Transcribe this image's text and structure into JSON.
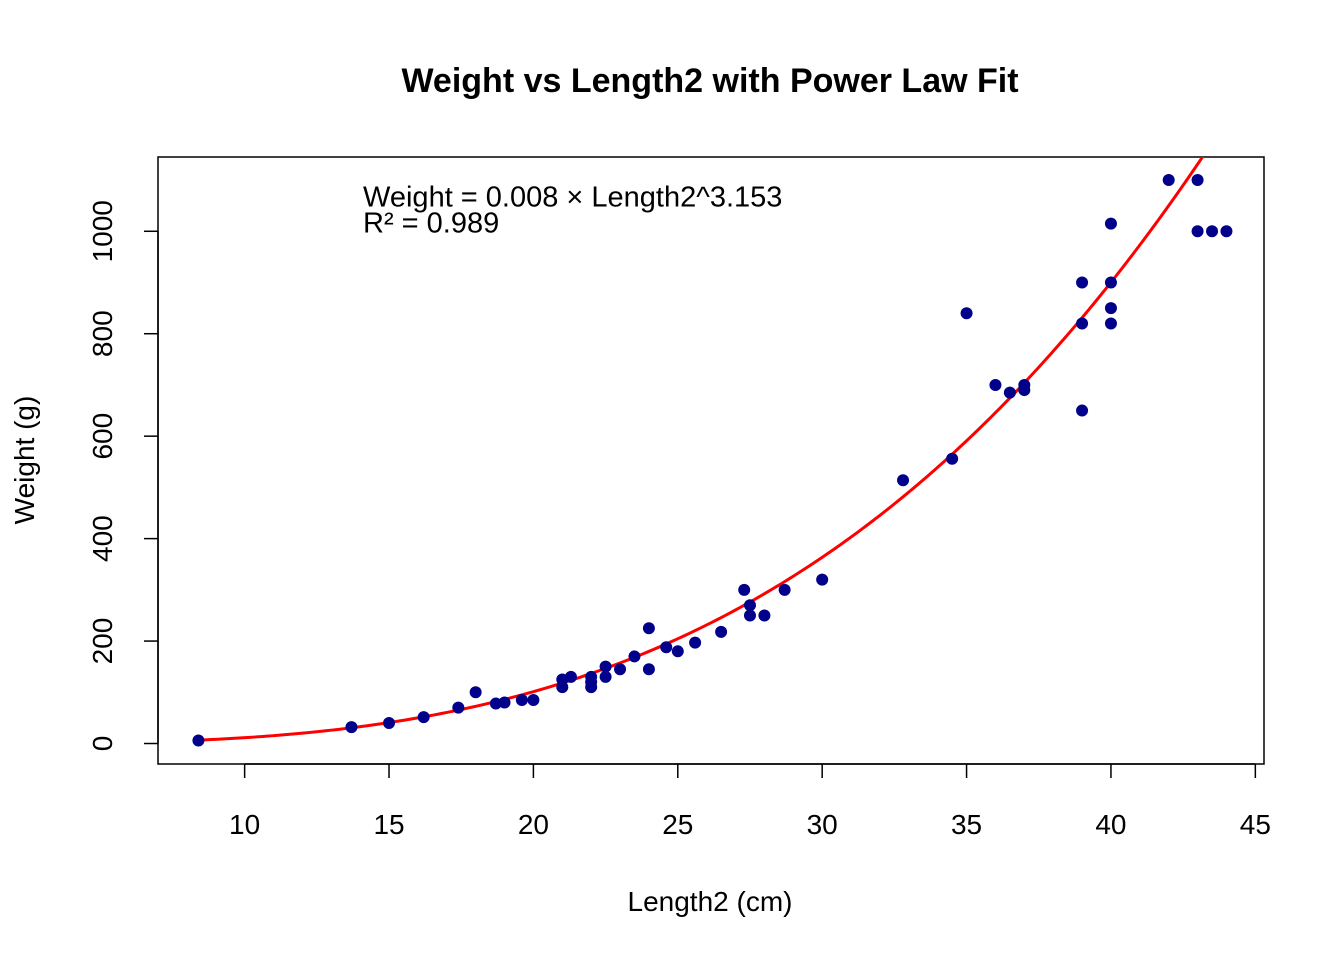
{
  "chart_data": {
    "type": "scatter",
    "title": "Weight vs Length2 with Power Law Fit",
    "xlabel": "Length2 (cm)",
    "ylabel": "Weight (g)",
    "xlim": [
      7.0,
      45.3
    ],
    "ylim": [
      -40,
      1145
    ],
    "x_ticks": [
      10,
      15,
      20,
      25,
      30,
      35,
      40,
      45
    ],
    "y_ticks": [
      0,
      200,
      400,
      600,
      800,
      1000
    ],
    "grid": false,
    "legend": "none",
    "point_color": "#00008B",
    "fit_color": "#FF0000",
    "annotations": [
      {
        "text": "Weight = 0.008 × Length2^3.153",
        "x": 14.1,
        "y": 1048
      },
      {
        "text": "R² = 0.989",
        "x": 14.1,
        "y": 998
      }
    ],
    "fit": {
      "model": "power",
      "a": 0.008,
      "b": 3.153
    },
    "series": [
      {
        "x": [
          8.4,
          13.7,
          15.0,
          16.2,
          17.4,
          18.0,
          18.7,
          19.0,
          19.6,
          20.0,
          21.0,
          21.0,
          21.3,
          22.0,
          22.0,
          22.0,
          22.5,
          22.5,
          23.0,
          23.5,
          24.0,
          24.0,
          24.6,
          25.0,
          25.6,
          26.5,
          27.3,
          27.5,
          27.5,
          28.0,
          28.7,
          30.0,
          32.8,
          34.5,
          35.0,
          36.0,
          36.5,
          37.0,
          37.0,
          39.0,
          39.0,
          39.0,
          40.0,
          40.0,
          40.0,
          40.0,
          42.0,
          43.0,
          43.0,
          43.5,
          44.0
        ],
        "y": [
          5.9,
          32,
          40,
          51.5,
          70,
          100,
          78,
          80,
          85,
          85,
          110,
          125,
          130,
          110,
          120,
          130,
          130,
          150,
          145,
          170,
          145,
          225,
          188,
          180,
          197,
          218,
          300,
          270,
          250,
          250,
          300,
          320,
          514,
          556,
          840,
          700,
          685,
          700,
          690,
          650,
          820,
          900,
          850,
          900,
          1015,
          820,
          1100,
          1000,
          1100,
          1000,
          1000
        ]
      }
    ]
  }
}
